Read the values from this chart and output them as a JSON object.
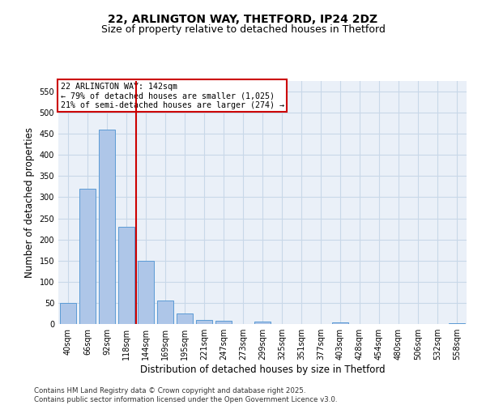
{
  "title1": "22, ARLINGTON WAY, THETFORD, IP24 2DZ",
  "title2": "Size of property relative to detached houses in Thetford",
  "xlabel": "Distribution of detached houses by size in Thetford",
  "ylabel": "Number of detached properties",
  "categories": [
    "40sqm",
    "66sqm",
    "92sqm",
    "118sqm",
    "144sqm",
    "169sqm",
    "195sqm",
    "221sqm",
    "247sqm",
    "273sqm",
    "299sqm",
    "325sqm",
    "351sqm",
    "377sqm",
    "403sqm",
    "428sqm",
    "454sqm",
    "480sqm",
    "506sqm",
    "532sqm",
    "558sqm"
  ],
  "values": [
    50,
    320,
    460,
    230,
    150,
    55,
    25,
    10,
    8,
    0,
    5,
    0,
    0,
    0,
    3,
    0,
    0,
    0,
    0,
    0,
    2
  ],
  "bar_color": "#aec6e8",
  "bar_edge_color": "#5b9bd5",
  "vline_x_idx": 3.5,
  "vline_color": "#cc0000",
  "annotation_text": "22 ARLINGTON WAY: 142sqm\n← 79% of detached houses are smaller (1,025)\n21% of semi-detached houses are larger (274) →",
  "annotation_box_color": "#ffffff",
  "annotation_box_edge": "#cc0000",
  "ylim": [
    0,
    575
  ],
  "yticks": [
    0,
    50,
    100,
    150,
    200,
    250,
    300,
    350,
    400,
    450,
    500,
    550
  ],
  "grid_color": "#c8d8e8",
  "background_color": "#eaf0f8",
  "footer": "Contains HM Land Registry data © Crown copyright and database right 2025.\nContains public sector information licensed under the Open Government Licence v3.0.",
  "title_fontsize": 10,
  "subtitle_fontsize": 9,
  "tick_fontsize": 7,
  "axis_label_fontsize": 8.5
}
